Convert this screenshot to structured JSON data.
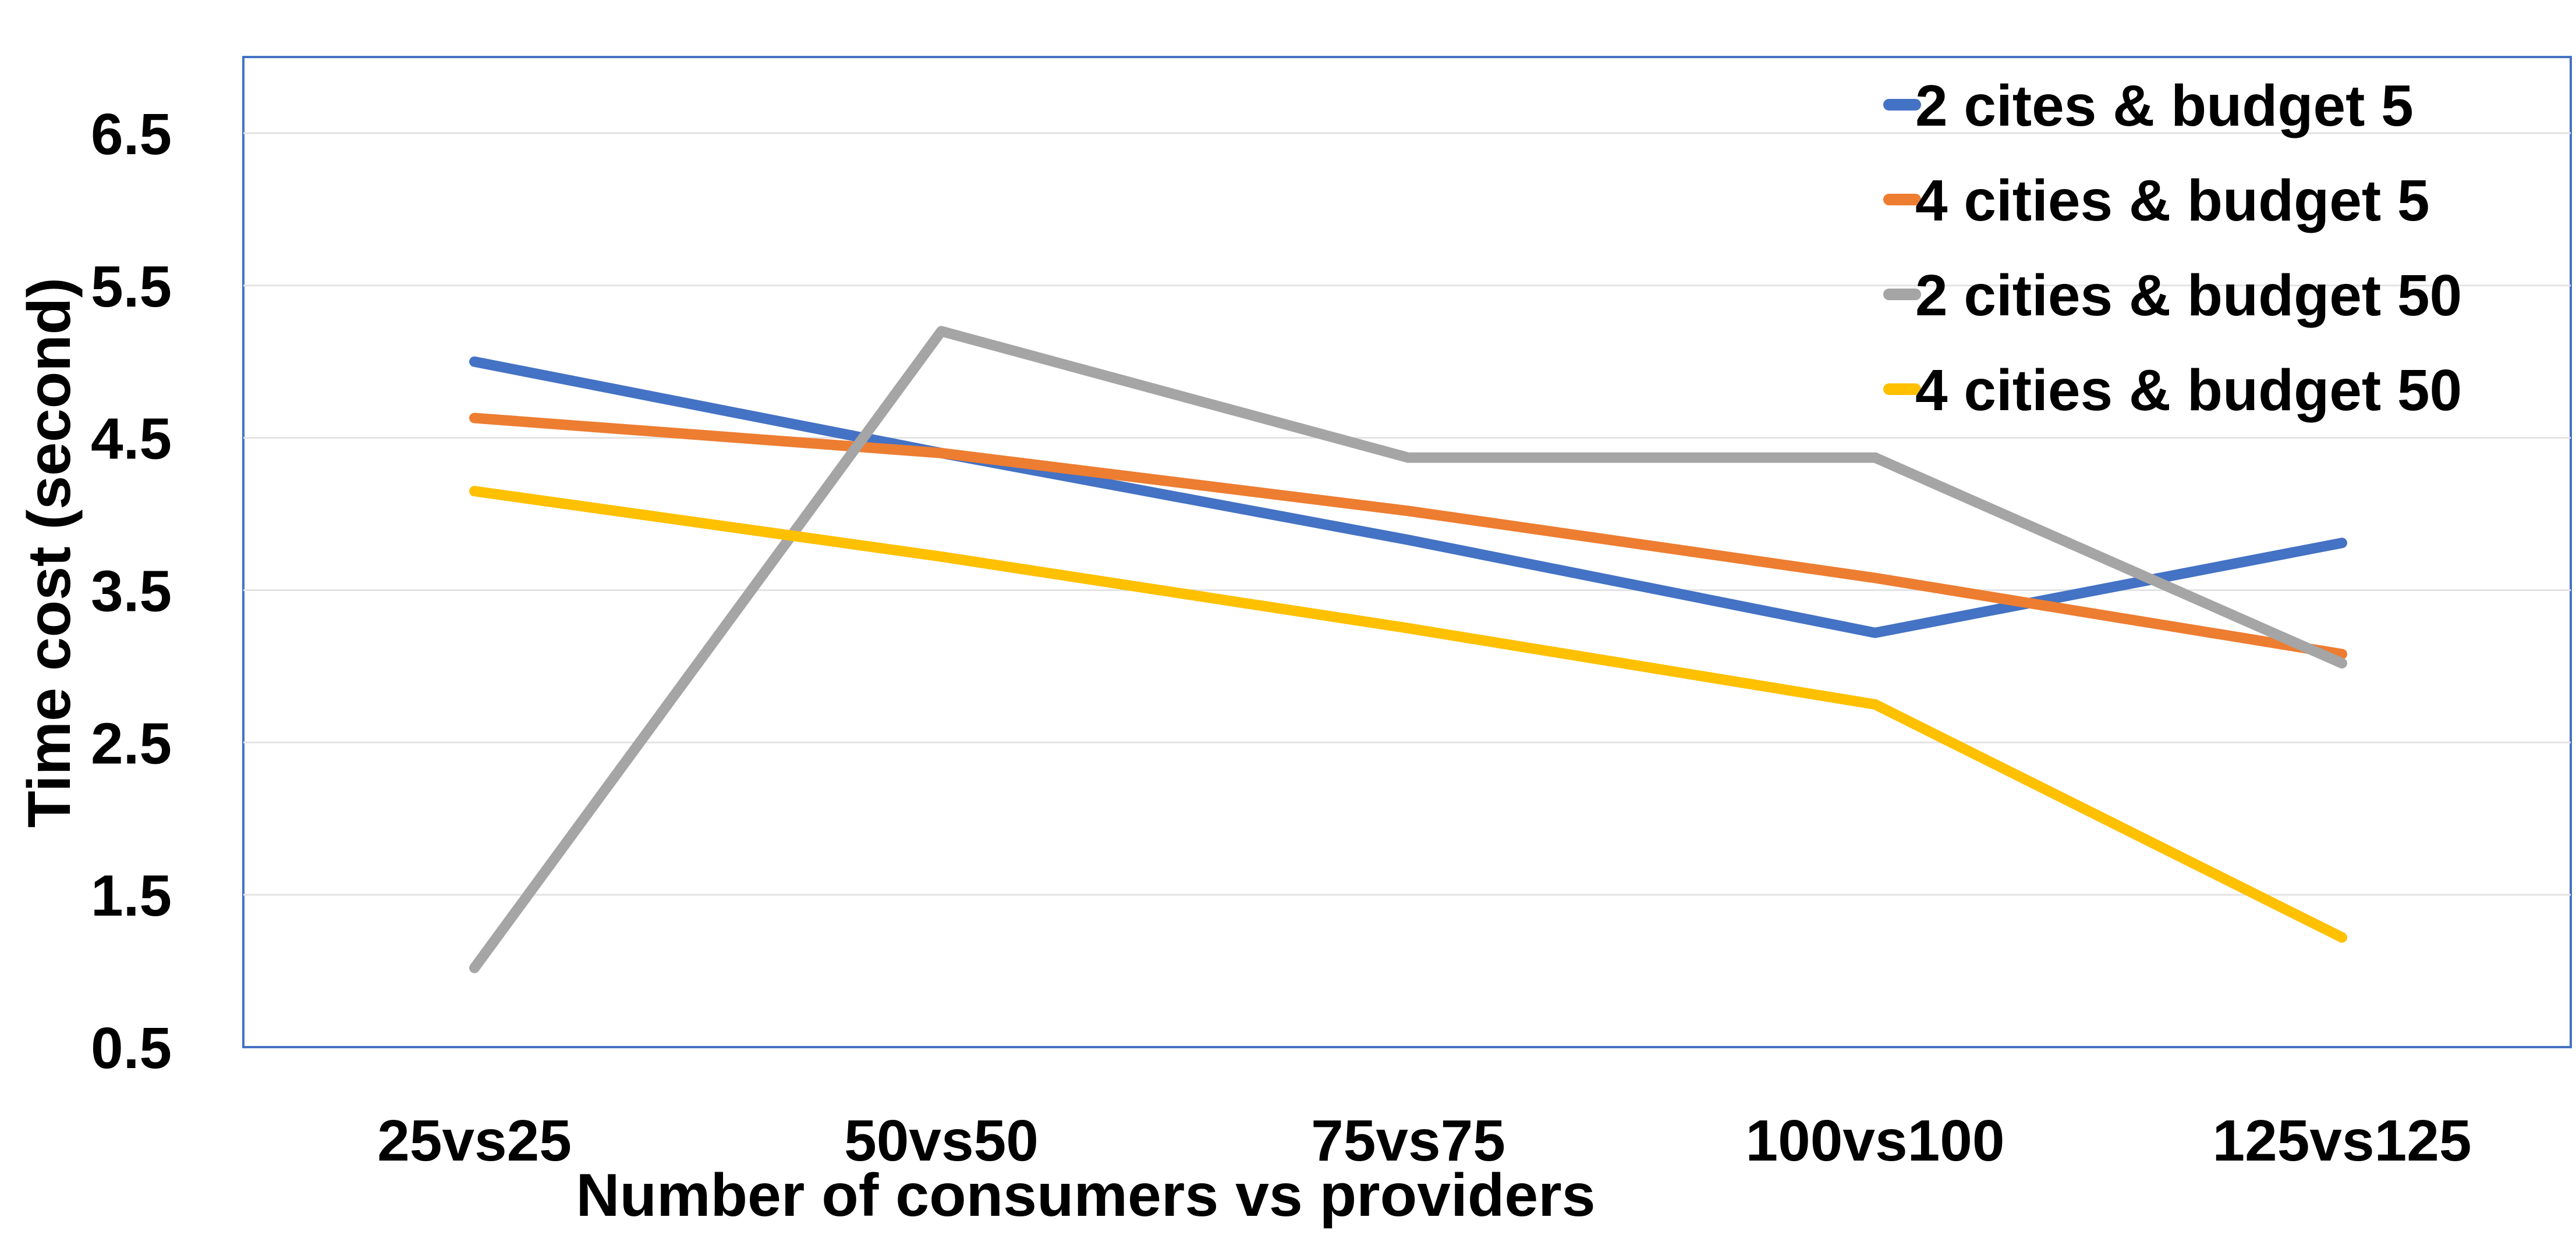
{
  "chart_data": {
    "type": "line",
    "title": "",
    "xlabel": "Number of consumers vs providers",
    "ylabel": "Time cost (second)",
    "categories": [
      "25vs25",
      "50vs50",
      "75vs75",
      "100vs100",
      "125vs125"
    ],
    "ylim": [
      0.5,
      7.0
    ],
    "yticks": [
      "0.5",
      "1.5",
      "2.5",
      "3.5",
      "4.5",
      "5.5",
      "6.5"
    ],
    "grid": true,
    "legend_position": "top-right",
    "series": [
      {
        "name": "2 cites & budget 5",
        "color": "#4472C4",
        "values": [
          5.0,
          4.4,
          3.83,
          3.22,
          3.81
        ]
      },
      {
        "name": "4 cities & budget 5",
        "color": "#ED7D31",
        "values": [
          4.63,
          4.4,
          4.02,
          3.58,
          3.08
        ]
      },
      {
        "name": "2 cities & budget 50",
        "color": "#A5A5A5",
        "values": [
          1.02,
          5.2,
          4.37,
          4.37,
          3.02
        ]
      },
      {
        "name": "4 cities & budget 50",
        "color": "#FFC000",
        "values": [
          4.15,
          3.72,
          3.25,
          2.75,
          1.22
        ]
      }
    ]
  }
}
